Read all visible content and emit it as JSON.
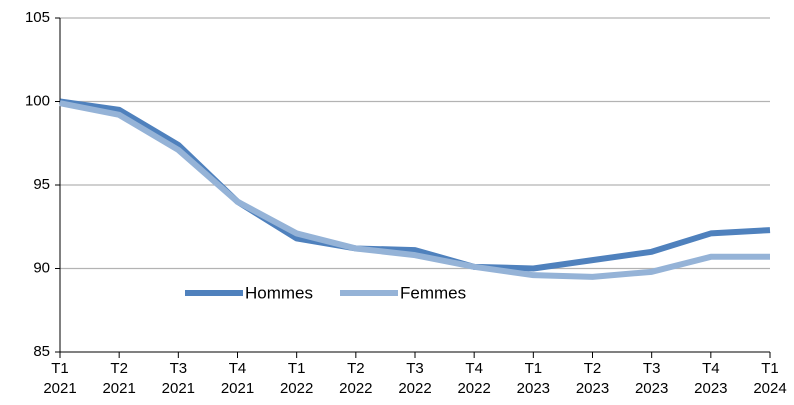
{
  "chart_data": {
    "type": "line",
    "categories": [
      [
        "T1",
        "2021"
      ],
      [
        "T2",
        "2021"
      ],
      [
        "T3",
        "2021"
      ],
      [
        "T4",
        "2021"
      ],
      [
        "T1",
        "2022"
      ],
      [
        "T2",
        "2022"
      ],
      [
        "T3",
        "2022"
      ],
      [
        "T4",
        "2022"
      ],
      [
        "T1",
        "2023"
      ],
      [
        "T2",
        "2023"
      ],
      [
        "T3",
        "2023"
      ],
      [
        "T4",
        "2023"
      ],
      [
        "T1",
        "2024"
      ]
    ],
    "series": [
      {
        "name": "Hommes",
        "color": "#4f81bd",
        "values": [
          100,
          99.5,
          97.4,
          94.0,
          91.8,
          91.2,
          91.1,
          90.1,
          90.0,
          90.5,
          91.0,
          92.1,
          92.3
        ]
      },
      {
        "name": "Femmes",
        "color": "#95b3d7",
        "values": [
          99.9,
          99.2,
          97.1,
          94.0,
          92.1,
          91.2,
          90.8,
          90.1,
          89.6,
          89.5,
          89.8,
          90.7,
          90.7
        ]
      }
    ],
    "ylim": [
      85,
      105
    ],
    "yticks": [
      85,
      90,
      95,
      100,
      105
    ],
    "grid": true
  }
}
